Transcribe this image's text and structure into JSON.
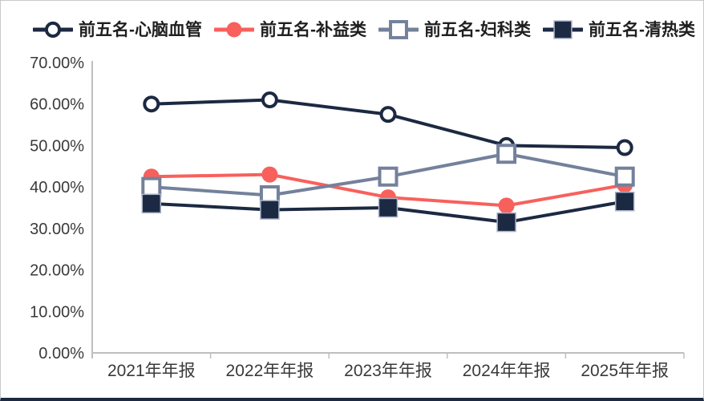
{
  "chart_data": {
    "type": "line",
    "title": "",
    "xlabel": "",
    "ylabel": "",
    "categories": [
      "2021年年报",
      "2022年年报",
      "2023年年报",
      "2024年年报",
      "2025年年报"
    ],
    "series": [
      {
        "name": "前五名-心脑血管",
        "color": "#1c2942",
        "marker": "circle-hollow",
        "values": [
          60.0,
          61.0,
          57.5,
          50.0,
          49.5
        ]
      },
      {
        "name": "前五名-补益类",
        "color": "#f8605c",
        "marker": "circle-filled",
        "values": [
          42.5,
          43.0,
          37.5,
          35.5,
          40.5
        ]
      },
      {
        "name": "前五名-妇科类",
        "color": "#74819c",
        "marker": "square-hollow",
        "values": [
          40.0,
          38.0,
          42.5,
          48.0,
          42.5
        ]
      },
      {
        "name": "前五名-清热类",
        "color": "#1c2942",
        "marker": "square-filled",
        "values": [
          36.0,
          34.5,
          35.0,
          31.5,
          36.5
        ]
      }
    ],
    "y_axis": {
      "min": 0,
      "max": 70,
      "step": 10,
      "tick_labels": [
        "0.00%",
        "10.00%",
        "20.00%",
        "30.00%",
        "40.00%",
        "50.00%",
        "60.00%",
        "70.00%"
      ]
    },
    "legend_position": "top",
    "grid": false,
    "axis_color": "#bfbfbf",
    "axis_text_color": "#3a3a3a"
  }
}
